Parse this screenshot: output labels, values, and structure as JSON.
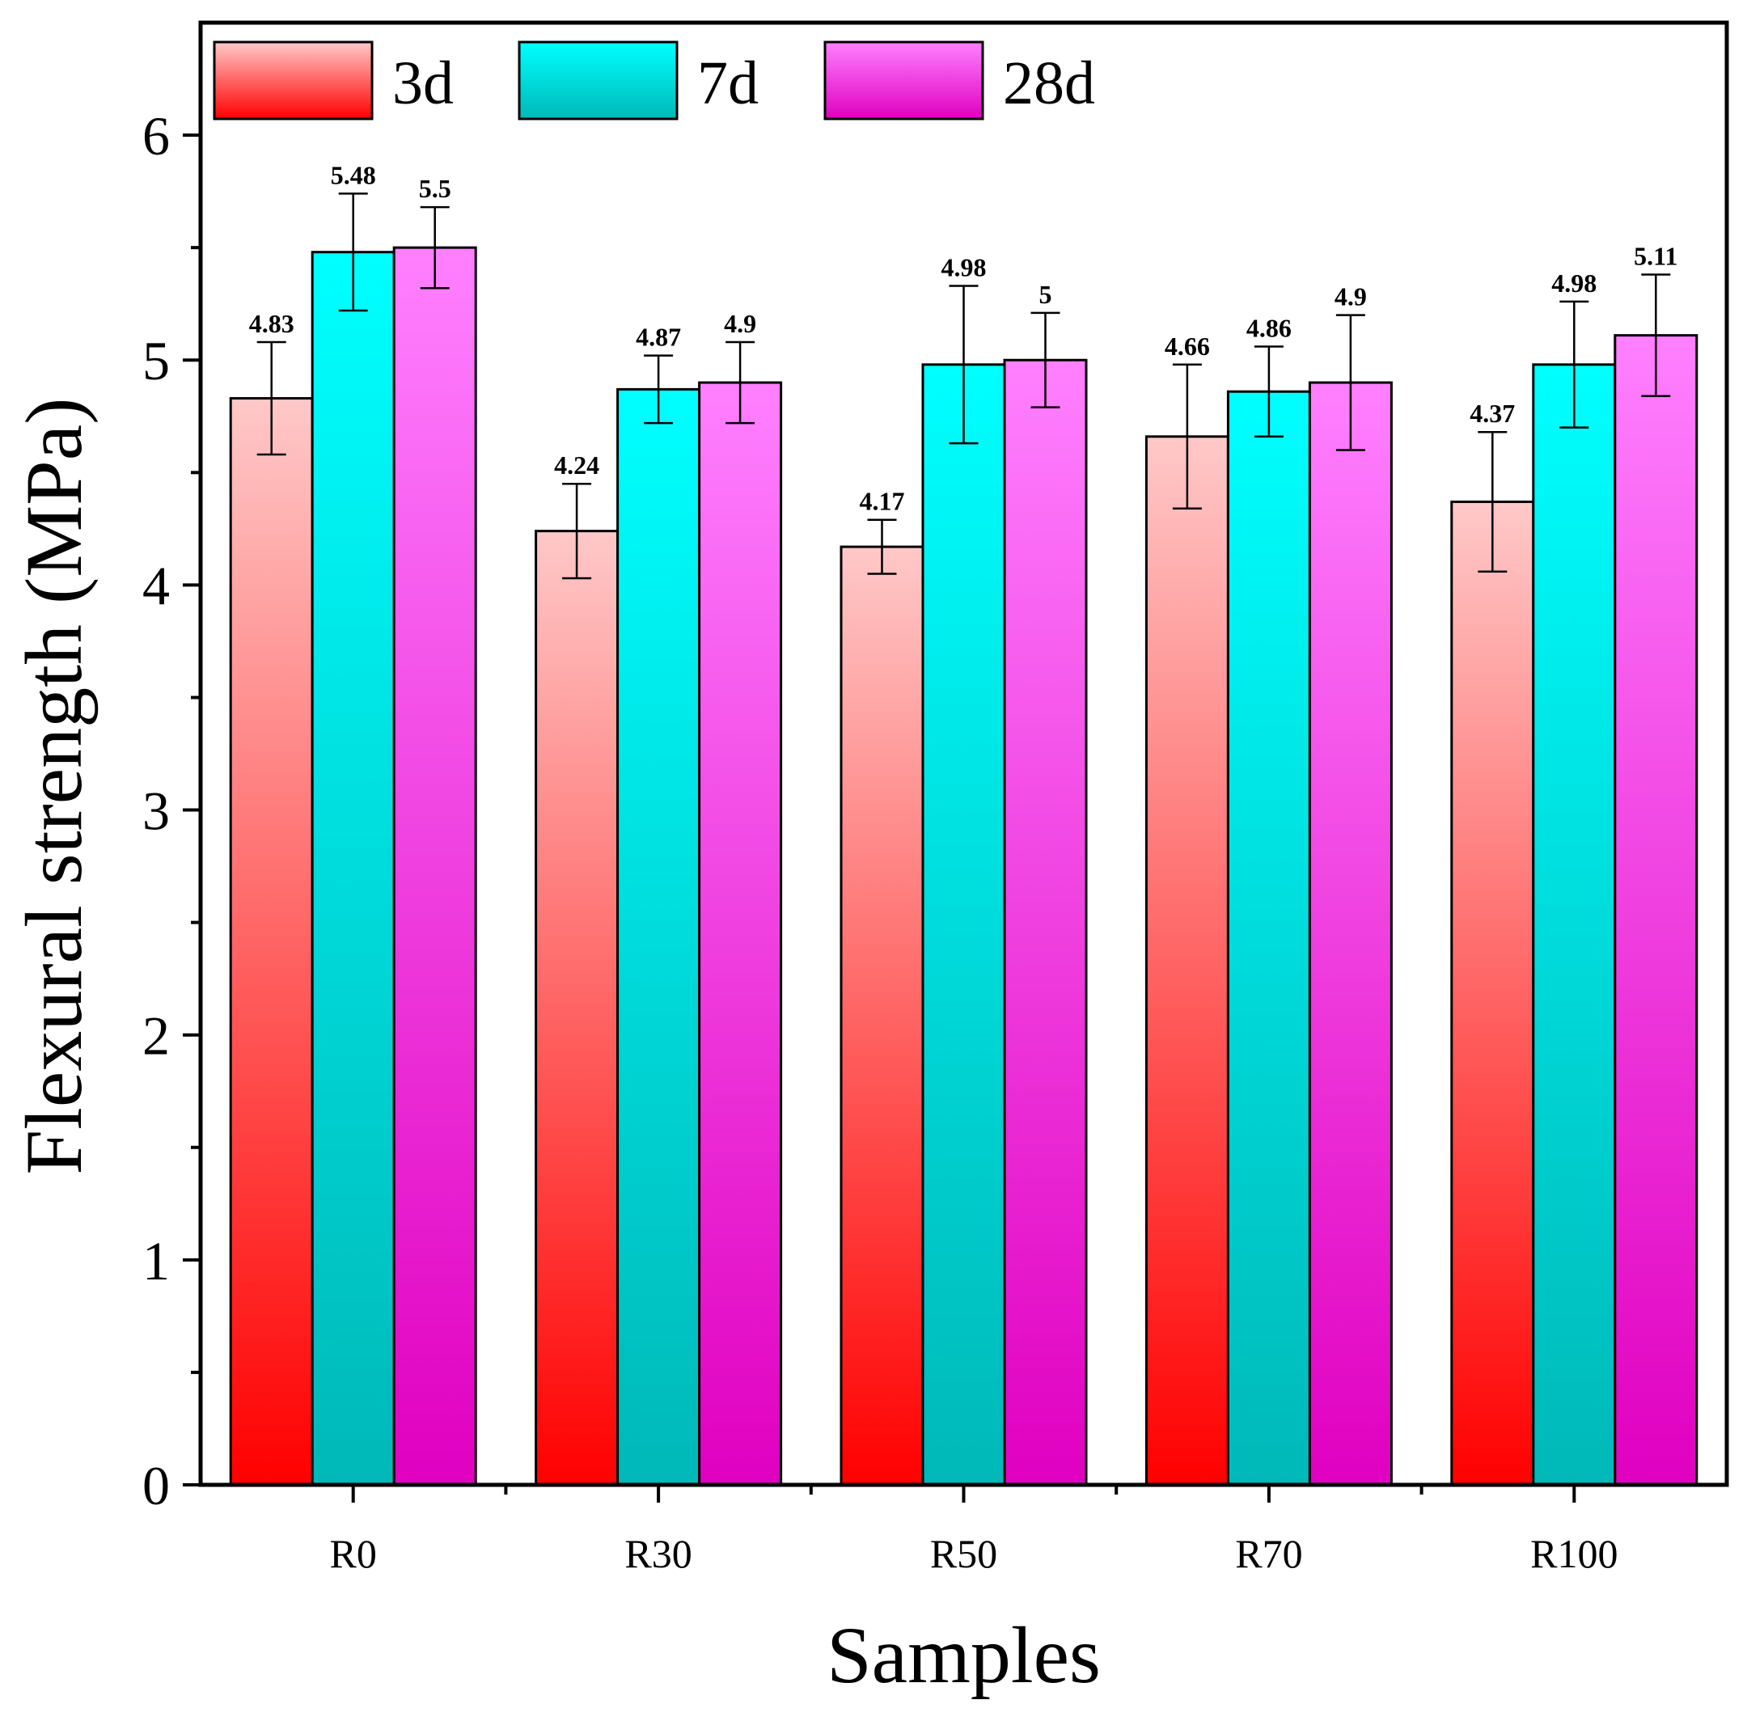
{
  "chart_data": {
    "type": "bar",
    "categories": [
      "R0",
      "R30",
      "R50",
      "R70",
      "R100"
    ],
    "xlabel": "Samples",
    "ylabel": "Flexural  strength (MPa)",
    "ylim": [
      0,
      6.5
    ],
    "yticks": [
      0,
      1,
      2,
      3,
      4,
      5,
      6
    ],
    "grid": false,
    "legend_position": "top",
    "series": [
      {
        "name": "3d",
        "values": [
          4.83,
          4.24,
          4.17,
          4.66,
          4.37
        ],
        "errors": [
          0.25,
          0.21,
          0.12,
          0.32,
          0.31
        ],
        "labels": [
          "4.83",
          "4.24",
          "4.17",
          "4.66",
          "4.37"
        ],
        "color_top": "#ffc8c8",
        "color_bottom": "#ff0000"
      },
      {
        "name": "7d",
        "values": [
          5.48,
          4.87,
          4.98,
          4.86,
          4.98
        ],
        "errors": [
          0.26,
          0.15,
          0.35,
          0.2,
          0.28
        ],
        "labels": [
          "5.48",
          "4.87",
          "4.98",
          "4.86",
          "4.98"
        ],
        "color_top": "#00ffff",
        "color_bottom": "#00b8b8"
      },
      {
        "name": "28d",
        "values": [
          5.5,
          4.9,
          5.0,
          4.9,
          5.11
        ],
        "errors": [
          0.18,
          0.18,
          0.21,
          0.3,
          0.27
        ],
        "labels": [
          "5.5",
          "4.9",
          "5",
          "4.9",
          "5.11"
        ],
        "color_top": "#ff80ff",
        "color_bottom": "#e000c0"
      }
    ]
  }
}
